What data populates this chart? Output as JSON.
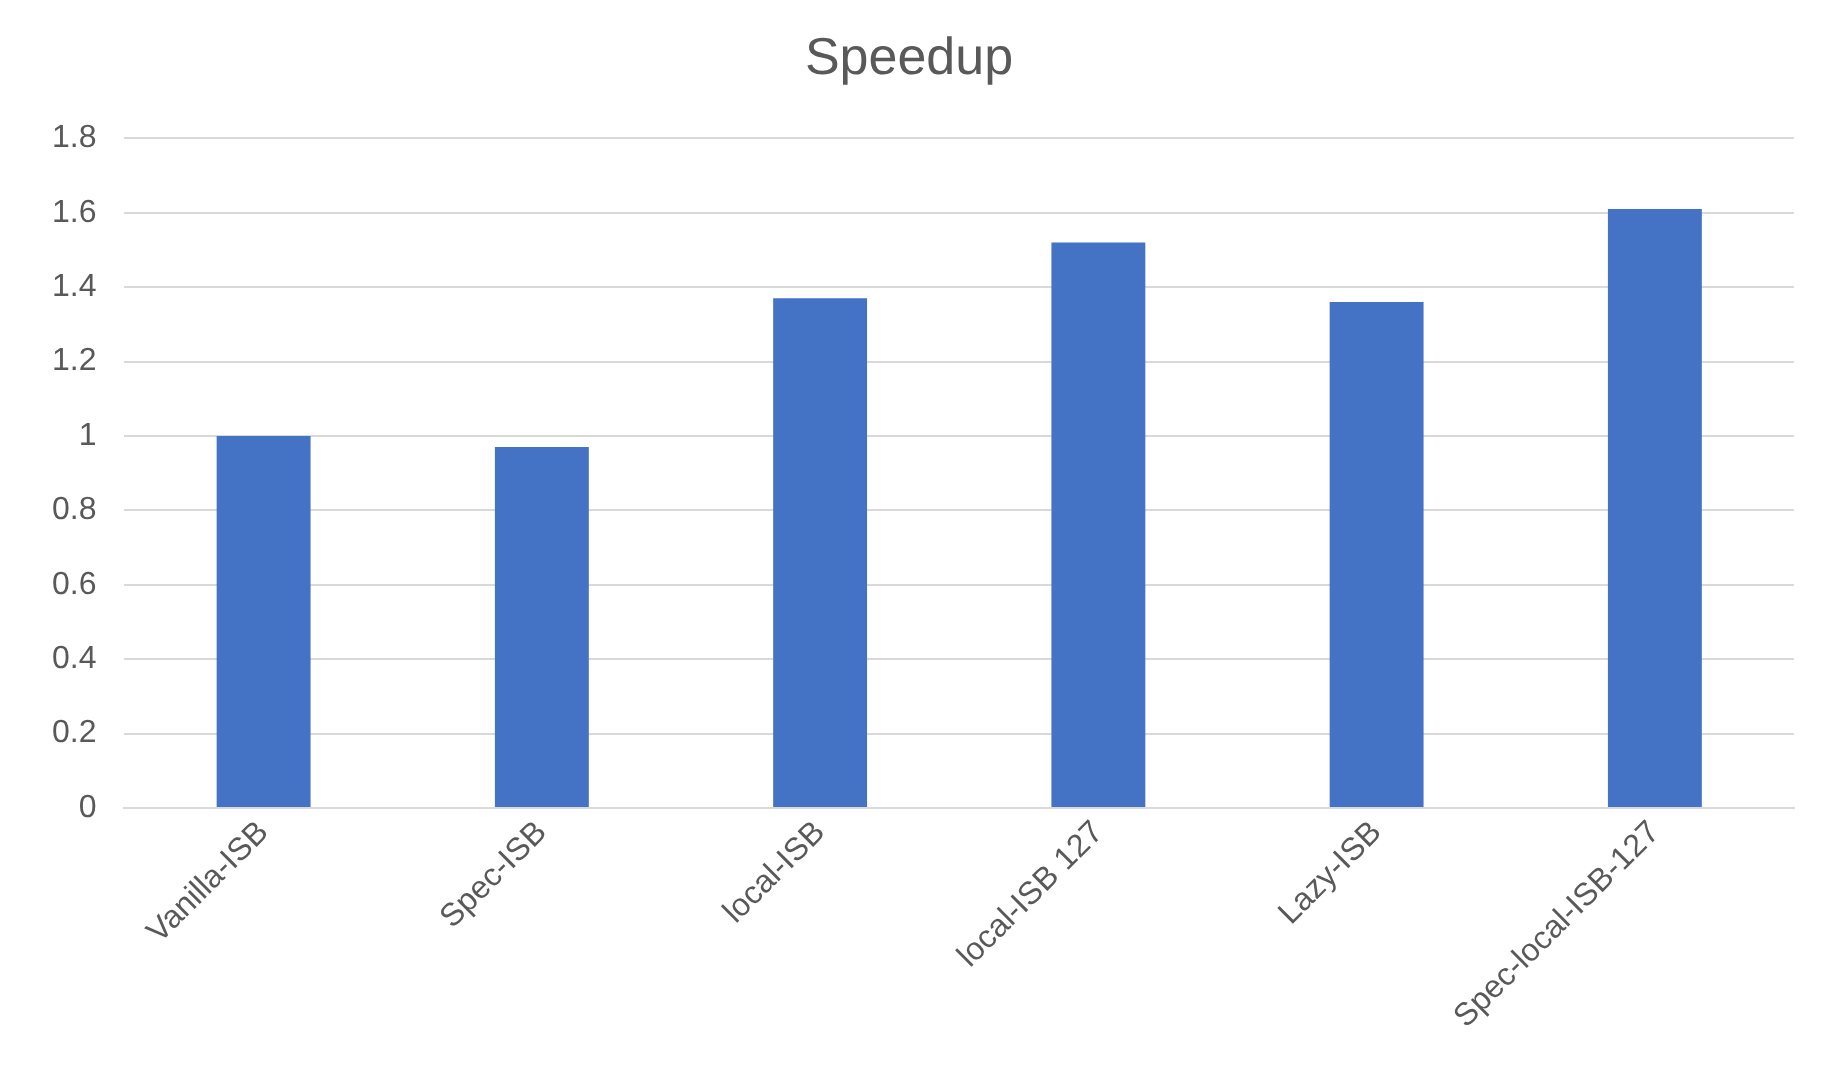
{
  "chart_data": {
    "type": "bar",
    "title": "Speedup",
    "categories": [
      "Vanilla-ISB",
      "Spec-ISB",
      "local-ISB",
      "local-ISB 127",
      "Lazy-ISB",
      "Spec-local-ISB-127"
    ],
    "values": [
      1.0,
      0.97,
      1.37,
      1.52,
      1.36,
      1.61
    ],
    "color": "#4472c4",
    "ylim": [
      0,
      1.8
    ],
    "yticks": [
      0,
      0.2,
      0.4,
      0.6,
      0.8,
      1,
      1.2,
      1.4,
      1.6,
      1.8
    ],
    "grid": "y",
    "legend": false
  }
}
